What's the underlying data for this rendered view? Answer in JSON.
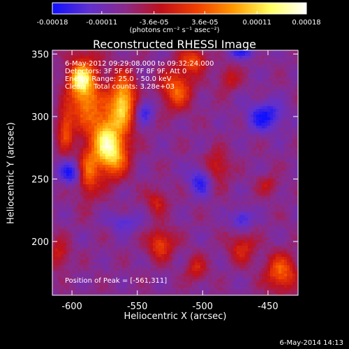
{
  "chart_data": {
    "type": "heatmap",
    "title": "Reconstructed RHESSI Image",
    "xlabel": "Heliocentric X (arcsec)",
    "ylabel": "Heliocentric Y (arcsec)",
    "xlim": [
      -615,
      -427
    ],
    "ylim": [
      157,
      353
    ],
    "x_ticks": [
      -600,
      -550,
      -500,
      -450
    ],
    "y_ticks": [
      200,
      250,
      300,
      350
    ],
    "colorbar": {
      "title": "(photons cm⁻² s⁻¹ asec⁻²)",
      "range": [
        -0.00018,
        0.00018
      ],
      "tick_labels": [
        "-0.00018",
        "-0.00011",
        "-3.6e-05",
        "3.6e-05",
        "0.00011",
        "0.00018"
      ],
      "tick_values": [
        -0.00018,
        -0.00011,
        -3.6e-05,
        3.6e-05,
        0.00011,
        0.00018
      ],
      "colors": [
        "#1010ff",
        "#6030d0",
        "#8a2a8a",
        "#c0101a",
        "#f04000",
        "#ff9a00",
        "#ffff60",
        "#ffffff"
      ]
    },
    "annotations": {
      "time_range": "6-May-2012 09:29:08.000 to 09:32:24.000",
      "detectors": "Detectors: 3F 5F 6F 7F 8F 9F, Att 0",
      "energy_range": "Energy Range: 25.0 - 50.0 keV",
      "clean": "Clean    Total counts: 3.28e+03",
      "peak": "Position of Peak = [-561,311]"
    },
    "peak_position": [
      -561,
      311
    ],
    "grid": false
  },
  "footer": {
    "date": "6-May-2014 14:13"
  }
}
